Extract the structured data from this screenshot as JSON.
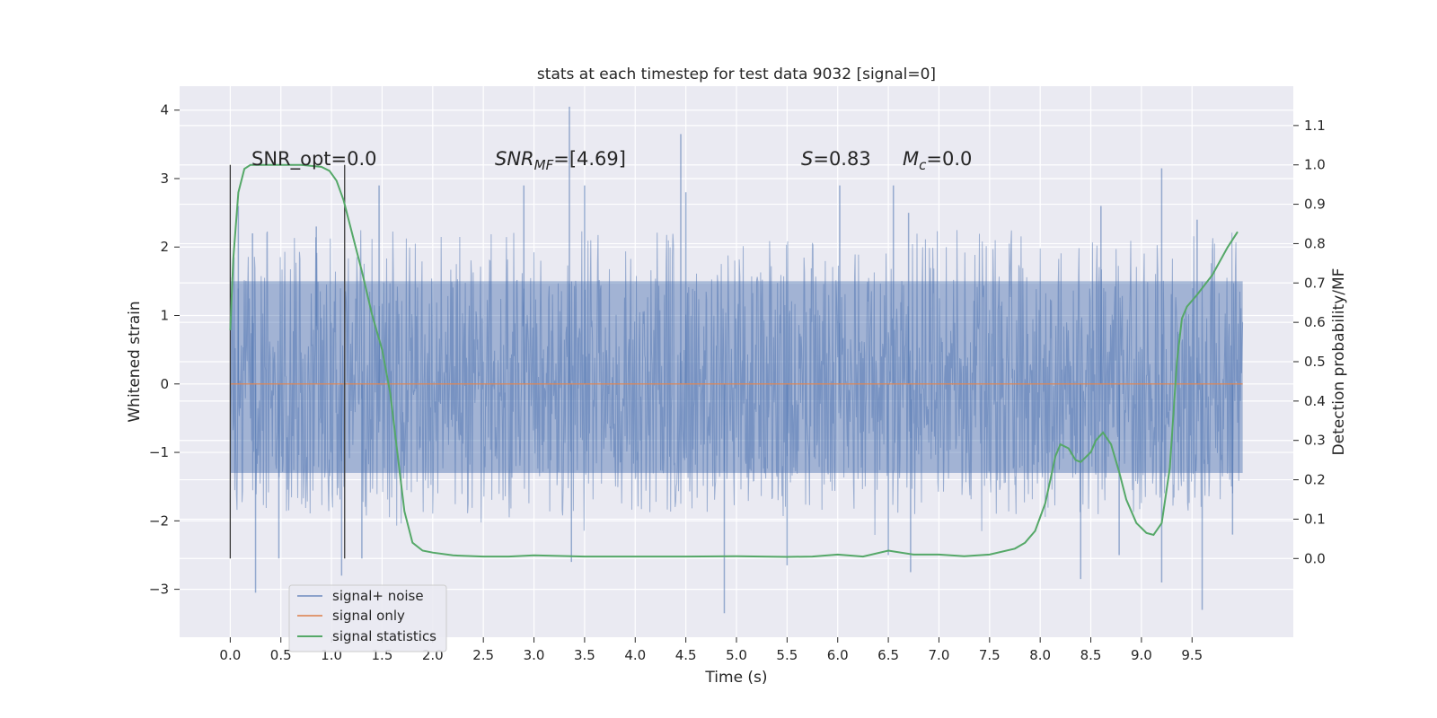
{
  "chart_data": {
    "type": "line",
    "title": "stats at each timestep for test data 9032 [signal=0]",
    "xlabel": "Time (s)",
    "ylabel": "Whitened strain",
    "y2label": "Detection probability/MF",
    "xlim": [
      -0.5,
      10.5
    ],
    "ylim": [
      -3.7,
      4.35
    ],
    "y2lim": [
      -0.2,
      1.2
    ],
    "x_ticks": [
      0.0,
      0.5,
      1.0,
      1.5,
      2.0,
      2.5,
      3.0,
      3.5,
      4.0,
      4.5,
      5.0,
      5.5,
      6.0,
      6.5,
      7.0,
      7.5,
      8.0,
      8.5,
      9.0,
      9.5
    ],
    "x_tick_labels": [
      "0.0",
      "0.5",
      "1.0",
      "1.5",
      "2.0",
      "2.5",
      "3.0",
      "3.5",
      "4.0",
      "4.5",
      "5.0",
      "5.5",
      "6.0",
      "6.5",
      "7.0",
      "7.5",
      "8.0",
      "8.5",
      "9.0",
      "9.5"
    ],
    "y_ticks": [
      -3,
      -2,
      -1,
      0,
      1,
      2,
      3,
      4
    ],
    "y_tick_labels": [
      "−3",
      "−2",
      "−1",
      "0",
      "1",
      "2",
      "3",
      "4"
    ],
    "y2_ticks": [
      0.0,
      0.1,
      0.2,
      0.3,
      0.4,
      0.5,
      0.6,
      0.7,
      0.8,
      0.9,
      1.0,
      1.1
    ],
    "y2_tick_labels": [
      "0.0",
      "0.1",
      "0.2",
      "0.3",
      "0.4",
      "0.5",
      "0.6",
      "0.7",
      "0.8",
      "0.9",
      "1.0",
      "1.1"
    ],
    "grid": true,
    "legend_position": "lower-left",
    "legend": [
      "signal+ noise",
      "signal only",
      "signal statistics"
    ],
    "colors": {
      "noise": "#4c72b0",
      "signal": "#dd8452",
      "stats": "#55a868",
      "background": "#eaeaf2",
      "grid": "#ffffff",
      "marker": "#3c3c3c"
    },
    "annotations": {
      "snr_opt": "SNR_opt=0.0",
      "snr_mf_pre": "SNR",
      "snr_mf_sub": "MF",
      "snr_mf_post": "=[4.69]",
      "s_pre": "S",
      "s_post": "=0.83",
      "mc_pre": "M",
      "mc_sub": "c",
      "mc_post": "=0.0"
    },
    "window_markers_x": [
      0.0,
      1.13
    ],
    "noise_series": {
      "name": "signal+ noise",
      "x_range": [
        0.0,
        10.0
      ],
      "typical_range": [
        -1.3,
        1.5
      ],
      "peaks_up": [
        [
          0.08,
          2.6
        ],
        [
          0.22,
          2.2
        ],
        [
          0.85,
          2.3
        ],
        [
          1.47,
          2.9
        ],
        [
          2.9,
          2.9
        ],
        [
          3.35,
          4.05
        ],
        [
          3.5,
          2.9
        ],
        [
          4.45,
          3.65
        ],
        [
          4.5,
          2.8
        ],
        [
          6.02,
          2.9
        ],
        [
          6.55,
          2.9
        ],
        [
          6.7,
          2.5
        ],
        [
          8.6,
          2.6
        ],
        [
          9.2,
          3.15
        ],
        [
          9.55,
          2.4
        ]
      ],
      "peaks_down": [
        [
          0.25,
          -3.05
        ],
        [
          0.48,
          -2.55
        ],
        [
          1.1,
          -2.8
        ],
        [
          1.3,
          -2.55
        ],
        [
          3.37,
          -2.6
        ],
        [
          4.88,
          -3.35
        ],
        [
          5.5,
          -2.65
        ],
        [
          6.5,
          -2.5
        ],
        [
          6.72,
          -2.75
        ],
        [
          8.4,
          -2.85
        ],
        [
          8.78,
          -2.5
        ],
        [
          9.2,
          -2.9
        ],
        [
          9.6,
          -3.3
        ],
        [
          9.9,
          -2.2
        ]
      ]
    },
    "series": [
      {
        "name": "signal only",
        "x": [
          0.0,
          10.0
        ],
        "y": [
          0.0,
          0.0
        ]
      },
      {
        "name": "signal statistics",
        "axis": "right",
        "x": [
          0.0,
          0.03,
          0.08,
          0.14,
          0.2,
          0.3,
          0.5,
          0.7,
          0.9,
          0.98,
          1.05,
          1.12,
          1.2,
          1.3,
          1.4,
          1.5,
          1.58,
          1.65,
          1.72,
          1.8,
          1.9,
          2.0,
          2.2,
          2.5,
          2.75,
          3.0,
          3.5,
          4.0,
          4.5,
          5.0,
          5.5,
          5.75,
          6.0,
          6.25,
          6.5,
          6.75,
          7.0,
          7.25,
          7.5,
          7.75,
          7.85,
          7.95,
          8.05,
          8.1,
          8.15,
          8.2,
          8.28,
          8.35,
          8.4,
          8.5,
          8.55,
          8.62,
          8.7,
          8.78,
          8.85,
          8.95,
          9.05,
          9.12,
          9.2,
          9.28,
          9.35,
          9.4,
          9.45,
          9.55,
          9.7,
          9.85,
          9.95
        ],
        "y": [
          0.58,
          0.76,
          0.93,
          0.99,
          1.0,
          1.0,
          1.0,
          1.0,
          0.995,
          0.985,
          0.96,
          0.91,
          0.83,
          0.73,
          0.62,
          0.53,
          0.42,
          0.27,
          0.12,
          0.04,
          0.02,
          0.015,
          0.008,
          0.005,
          0.005,
          0.008,
          0.005,
          0.005,
          0.005,
          0.006,
          0.004,
          0.005,
          0.01,
          0.005,
          0.02,
          0.01,
          0.01,
          0.006,
          0.01,
          0.025,
          0.04,
          0.07,
          0.14,
          0.2,
          0.26,
          0.29,
          0.28,
          0.25,
          0.245,
          0.27,
          0.3,
          0.32,
          0.29,
          0.22,
          0.15,
          0.09,
          0.065,
          0.06,
          0.09,
          0.23,
          0.5,
          0.61,
          0.64,
          0.67,
          0.72,
          0.79,
          0.83
        ]
      }
    ]
  }
}
